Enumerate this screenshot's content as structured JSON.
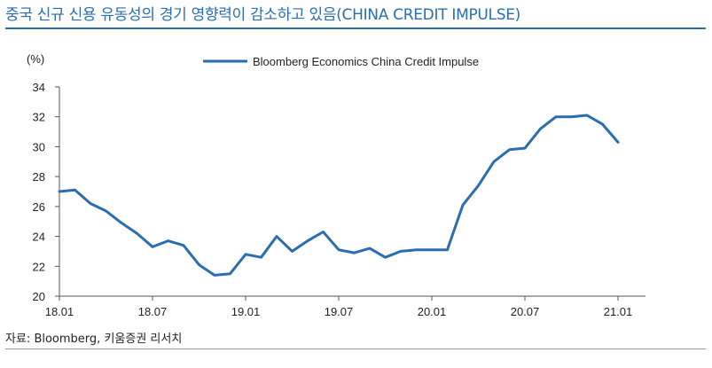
{
  "header": {
    "title": "중국 신규 신용 유동성의 경기 영향력이 감소하고 있음(CHINA CREDIT IMPULSE)"
  },
  "footer": {
    "source_label": "자료:",
    "source_1": "Bloomberg,",
    "source_2": "키움증권 리서치"
  },
  "chart_data": {
    "type": "line",
    "title": "중국 신규 신용 유동성의 경기 영향력이 감소하고 있음(CHINA CREDIT IMPULSE)",
    "ylabel": "(%)",
    "xlabel": "",
    "ylim": [
      20,
      34
    ],
    "yticks": [
      20,
      22,
      24,
      26,
      28,
      30,
      32,
      34
    ],
    "xticks": [
      "18.01",
      "18.07",
      "19.01",
      "19.07",
      "20.01",
      "20.07",
      "21.01"
    ],
    "legend_position": "top-center",
    "series": [
      {
        "name": "Bloomberg Economics China Credit Impulse",
        "color": "#2a6db1",
        "x": [
          "18.01",
          "18.02",
          "18.03",
          "18.04",
          "18.05",
          "18.06",
          "18.07",
          "18.08",
          "18.09",
          "18.10",
          "18.11",
          "18.12",
          "19.01",
          "19.02",
          "19.03",
          "19.04",
          "19.05",
          "19.06",
          "19.07",
          "19.08",
          "19.09",
          "19.10",
          "19.11",
          "19.12",
          "20.01",
          "20.02",
          "20.03",
          "20.04",
          "20.05",
          "20.06",
          "20.07",
          "20.08",
          "20.09",
          "20.10",
          "20.11",
          "20.12",
          "21.01"
        ],
        "values": [
          27.0,
          27.1,
          26.2,
          25.7,
          24.9,
          24.2,
          23.3,
          23.7,
          23.4,
          22.1,
          21.4,
          21.5,
          22.8,
          22.6,
          24.0,
          23.0,
          23.7,
          24.3,
          23.1,
          22.9,
          23.2,
          22.6,
          23.0,
          23.1,
          23.1,
          23.1,
          26.1,
          27.4,
          29.0,
          29.8,
          29.9,
          31.2,
          32.0,
          32.0,
          32.1,
          31.5,
          30.3
        ]
      }
    ]
  }
}
